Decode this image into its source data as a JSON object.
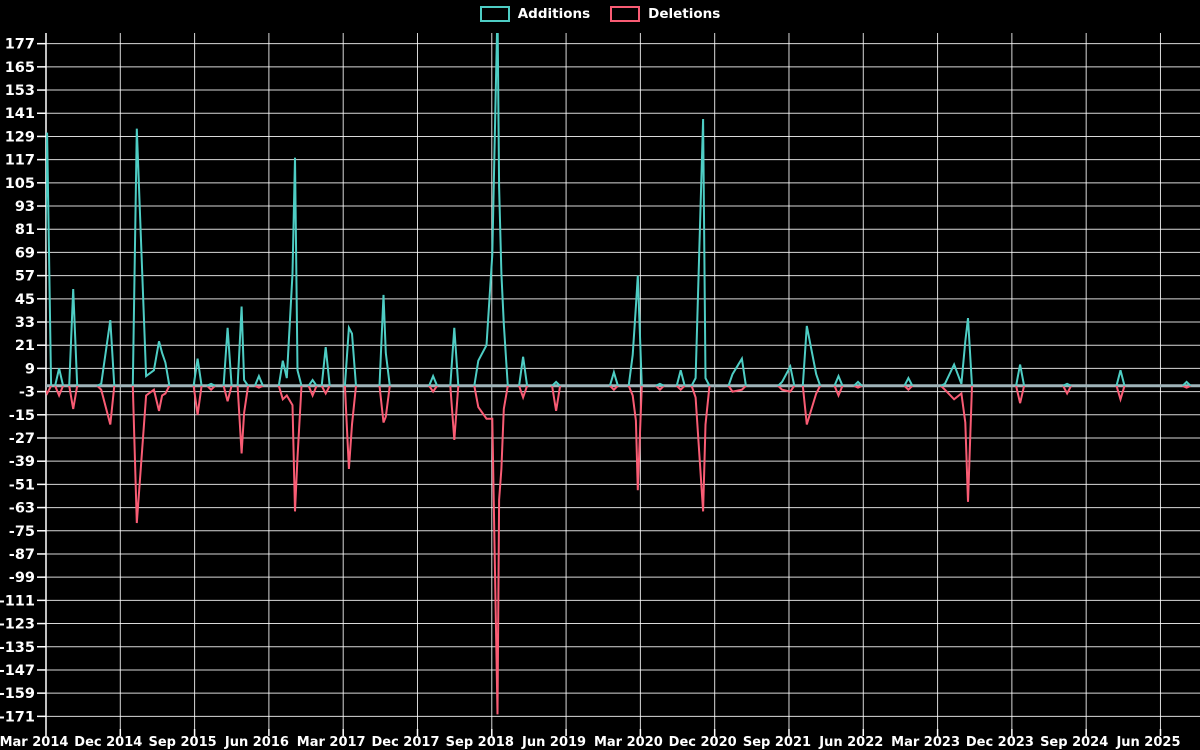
{
  "legend": {
    "additions_label": "Additions",
    "deletions_label": "Deletions"
  },
  "chart_data": {
    "type": "line",
    "title": "",
    "xlabel": "",
    "ylabel": "",
    "background": "#000000",
    "grid": true,
    "grid_color": "#FFFFFF",
    "zero_line_color": "#A0B4B9",
    "text_color": "#FFFFFF",
    "legend_position": "top-center",
    "series": [
      {
        "name": "Additions",
        "color": "#4ECDC4"
      },
      {
        "name": "Deletions",
        "color": "#F95C74"
      }
    ],
    "x_domain": [
      "2014-03-01",
      "2025-10-25"
    ],
    "ylim": [
      -177.5,
      182.5
    ],
    "y_ticks": [
      177,
      165,
      153,
      141,
      129,
      117,
      105,
      93,
      81,
      69,
      57,
      45,
      33,
      21,
      9,
      -3,
      -15,
      -27,
      -39,
      -51,
      -63,
      -75,
      -87,
      -99,
      -111,
      -123,
      -135,
      -147,
      -159,
      -171
    ],
    "x_ticks": [
      {
        "label": "Mar 2014",
        "date": "2014-03-01"
      },
      {
        "label": "Dec 2014",
        "date": "2014-12-01"
      },
      {
        "label": "Sep 2015",
        "date": "2015-09-01"
      },
      {
        "label": "Jun 2016",
        "date": "2016-06-01"
      },
      {
        "label": "Mar 2017",
        "date": "2017-03-01"
      },
      {
        "label": "Dec 2017",
        "date": "2017-12-01"
      },
      {
        "label": "Sep 2018",
        "date": "2018-09-01"
      },
      {
        "label": "Jun 2019",
        "date": "2019-06-01"
      },
      {
        "label": "Mar 2020",
        "date": "2020-03-01"
      },
      {
        "label": "Dec 2020",
        "date": "2020-12-01"
      },
      {
        "label": "Sep 2021",
        "date": "2021-09-01"
      },
      {
        "label": "Jun 2022",
        "date": "2022-06-01"
      },
      {
        "label": "Mar 2023",
        "date": "2023-03-01"
      },
      {
        "label": "Dec 2023",
        "date": "2023-12-01"
      },
      {
        "label": "Sep 2024",
        "date": "2024-09-01"
      },
      {
        "label": "Jun 2025",
        "date": "2025-06-01"
      }
    ],
    "points_columns": [
      "date",
      "additions",
      "deletions"
    ],
    "points": [
      [
        "2014-03-05",
        131,
        -4
      ],
      [
        "2014-04-19",
        9,
        -5
      ],
      [
        "2014-06-10",
        50,
        -12
      ],
      [
        "2014-09-22",
        1,
        -2
      ],
      [
        "2014-10-25",
        34,
        -20
      ],
      [
        "2015-02-01",
        133,
        -71
      ],
      [
        "2015-03-05",
        5,
        -5
      ],
      [
        "2015-04-03",
        8,
        -2
      ],
      [
        "2015-04-22",
        23,
        -13
      ],
      [
        "2015-05-03",
        17,
        -5
      ],
      [
        "2015-05-15",
        12,
        -4
      ],
      [
        "2015-09-12",
        14,
        -15
      ],
      [
        "2015-11-01",
        1,
        -2
      ],
      [
        "2016-01-01",
        30,
        -8
      ],
      [
        "2016-02-22",
        41,
        -35
      ],
      [
        "2016-03-01",
        3,
        -14
      ],
      [
        "2016-04-25",
        5,
        -1
      ],
      [
        "2016-07-22",
        13,
        -7
      ],
      [
        "2016-08-06",
        4,
        -5
      ],
      [
        "2016-08-27",
        58,
        -10
      ],
      [
        "2016-09-06",
        118,
        -65
      ],
      [
        "2016-09-15",
        8,
        -37
      ],
      [
        "2016-11-10",
        3,
        -5
      ],
      [
        "2016-12-28",
        20,
        -4
      ],
      [
        "2017-03-22",
        30,
        -43
      ],
      [
        "2017-04-03",
        27,
        -20
      ],
      [
        "2017-07-28",
        47,
        -19
      ],
      [
        "2017-08-06",
        17,
        -16
      ],
      [
        "2018-01-28",
        5,
        -3
      ],
      [
        "2018-04-15",
        30,
        -28
      ],
      [
        "2018-07-12",
        13,
        -11
      ],
      [
        "2018-08-12",
        21,
        -17
      ],
      [
        "2018-09-03",
        68,
        -17
      ],
      [
        "2018-09-22",
        195,
        -170
      ],
      [
        "2018-09-28",
        103,
        -59
      ],
      [
        "2018-10-06",
        58,
        -43
      ],
      [
        "2018-10-15",
        32,
        -12
      ],
      [
        "2018-12-25",
        15,
        -6
      ],
      [
        "2019-04-25",
        2,
        -13
      ],
      [
        "2019-11-25",
        7,
        -2
      ],
      [
        "2020-02-03",
        16,
        -5
      ],
      [
        "2020-02-15",
        41,
        -18
      ],
      [
        "2020-02-22",
        57,
        -54
      ],
      [
        "2020-05-12",
        1,
        -2
      ],
      [
        "2020-07-28",
        8,
        -2
      ],
      [
        "2020-09-22",
        4,
        -6
      ],
      [
        "2020-10-19",
        138,
        -65
      ],
      [
        "2020-10-28",
        4,
        -20
      ],
      [
        "2021-02-06",
        6,
        -3
      ],
      [
        "2021-03-10",
        14,
        -2
      ],
      [
        "2021-08-06",
        2,
        -2
      ],
      [
        "2021-09-06",
        10,
        -3
      ],
      [
        "2021-11-06",
        31,
        -20
      ],
      [
        "2021-12-10",
        6,
        -4
      ],
      [
        "2022-03-01",
        5,
        -5
      ],
      [
        "2022-05-12",
        2,
        -1
      ],
      [
        "2022-11-15",
        4,
        -2
      ],
      [
        "2023-03-28",
        1,
        -2
      ],
      [
        "2023-05-01",
        11,
        -7
      ],
      [
        "2023-05-28",
        1,
        -4
      ],
      [
        "2023-06-12",
        23,
        -19
      ],
      [
        "2023-06-22",
        35,
        -60
      ],
      [
        "2024-01-01",
        11,
        -9
      ],
      [
        "2024-06-22",
        1,
        -4
      ],
      [
        "2025-01-06",
        8,
        -7
      ],
      [
        "2025-09-06",
        2,
        -1
      ]
    ]
  }
}
